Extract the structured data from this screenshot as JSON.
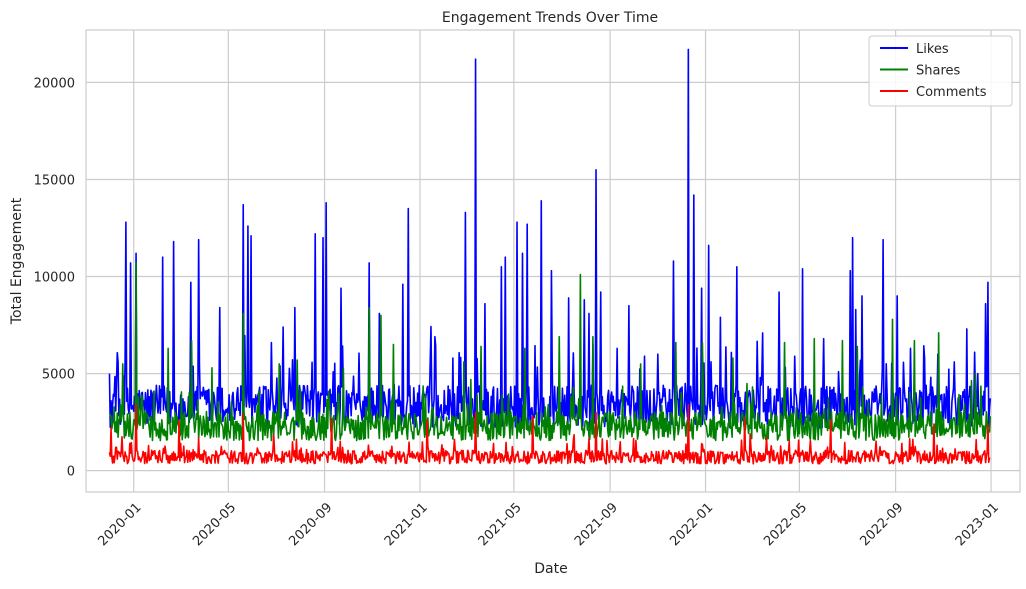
{
  "chart_data": {
    "type": "line",
    "title": "Engagement Trends Over Time",
    "xlabel": "Date",
    "ylabel": "Total Engagement",
    "xlim": [
      "2019-11-01",
      "2023-02-07"
    ],
    "ylim": [
      -1100,
      22700
    ],
    "grid": true,
    "legend_position": "top-right",
    "x_ticks": [
      "2020-01",
      "2020-05",
      "2020-09",
      "2021-01",
      "2021-05",
      "2021-09",
      "2022-01",
      "2022-05",
      "2022-09",
      "2023-01"
    ],
    "y_ticks": [
      0,
      5000,
      10000,
      15000,
      20000
    ],
    "x_start": "2019-12-01",
    "x_end": "2022-12-31",
    "series": [
      {
        "name": "Likes",
        "color": "#0000ff",
        "baseline": 3300,
        "noise": 1100,
        "min": 1500,
        "spikes": [
          {
            "date": "2019-12-01",
            "value": 5000
          },
          {
            "date": "2019-12-10",
            "value": 4600
          },
          {
            "date": "2019-12-22",
            "value": 12800
          },
          {
            "date": "2019-12-28",
            "value": 10700
          },
          {
            "date": "2020-01-04",
            "value": 11200
          },
          {
            "date": "2020-02-07",
            "value": 11000
          },
          {
            "date": "2020-02-21",
            "value": 11800
          },
          {
            "date": "2020-03-14",
            "value": 9700
          },
          {
            "date": "2020-03-24",
            "value": 11900
          },
          {
            "date": "2020-04-20",
            "value": 8400
          },
          {
            "date": "2020-05-20",
            "value": 13700
          },
          {
            "date": "2020-05-26",
            "value": 12600
          },
          {
            "date": "2020-05-30",
            "value": 12100
          },
          {
            "date": "2020-06-25",
            "value": 6600
          },
          {
            "date": "2020-07-10",
            "value": 7400
          },
          {
            "date": "2020-07-25",
            "value": 8400
          },
          {
            "date": "2020-08-20",
            "value": 12200
          },
          {
            "date": "2020-08-30",
            "value": 12000
          },
          {
            "date": "2020-09-03",
            "value": 13800
          },
          {
            "date": "2020-09-22",
            "value": 9400
          },
          {
            "date": "2020-10-28",
            "value": 10700
          },
          {
            "date": "2020-11-10",
            "value": 8100
          },
          {
            "date": "2020-12-10",
            "value": 9600
          },
          {
            "date": "2020-12-17",
            "value": 13500
          },
          {
            "date": "2021-01-20",
            "value": 6900
          },
          {
            "date": "2021-02-12",
            "value": 5800
          },
          {
            "date": "2021-02-28",
            "value": 13300
          },
          {
            "date": "2021-03-13",
            "value": 21200
          },
          {
            "date": "2021-03-25",
            "value": 8600
          },
          {
            "date": "2021-04-15",
            "value": 10500
          },
          {
            "date": "2021-04-20",
            "value": 11000
          },
          {
            "date": "2021-05-05",
            "value": 12800
          },
          {
            "date": "2021-05-12",
            "value": 11200
          },
          {
            "date": "2021-05-18",
            "value": 12700
          },
          {
            "date": "2021-06-05",
            "value": 13900
          },
          {
            "date": "2021-06-18",
            "value": 10300
          },
          {
            "date": "2021-07-10",
            "value": 8900
          },
          {
            "date": "2021-07-30",
            "value": 8800
          },
          {
            "date": "2021-08-05",
            "value": 8100
          },
          {
            "date": "2021-08-14",
            "value": 15500
          },
          {
            "date": "2021-08-20",
            "value": 9200
          },
          {
            "date": "2021-09-10",
            "value": 6300
          },
          {
            "date": "2021-09-25",
            "value": 8500
          },
          {
            "date": "2021-10-15",
            "value": 5900
          },
          {
            "date": "2021-11-01",
            "value": 6000
          },
          {
            "date": "2021-11-21",
            "value": 10800
          },
          {
            "date": "2021-12-10",
            "value": 21700
          },
          {
            "date": "2021-12-17",
            "value": 14200
          },
          {
            "date": "2021-12-27",
            "value": 9400
          },
          {
            "date": "2022-01-05",
            "value": 11600
          },
          {
            "date": "2022-01-20",
            "value": 7900
          },
          {
            "date": "2022-02-10",
            "value": 10500
          },
          {
            "date": "2022-03-14",
            "value": 5000
          },
          {
            "date": "2022-04-05",
            "value": 9200
          },
          {
            "date": "2022-04-25",
            "value": 5900
          },
          {
            "date": "2022-05-05",
            "value": 10400
          },
          {
            "date": "2022-06-01",
            "value": 6800
          },
          {
            "date": "2022-06-20",
            "value": 5100
          },
          {
            "date": "2022-07-05",
            "value": 10300
          },
          {
            "date": "2022-07-08",
            "value": 12000
          },
          {
            "date": "2022-07-12",
            "value": 8300
          },
          {
            "date": "2022-07-20",
            "value": 9000
          },
          {
            "date": "2022-08-16",
            "value": 11900
          },
          {
            "date": "2022-09-03",
            "value": 9000
          },
          {
            "date": "2022-09-20",
            "value": 6300
          },
          {
            "date": "2022-10-08",
            "value": 5800
          },
          {
            "date": "2022-10-25",
            "value": 6000
          },
          {
            "date": "2022-11-15",
            "value": 5600
          },
          {
            "date": "2022-12-01",
            "value": 7300
          },
          {
            "date": "2022-12-15",
            "value": 5000
          },
          {
            "date": "2022-12-25",
            "value": 8600
          },
          {
            "date": "2022-12-28",
            "value": 9700
          }
        ]
      },
      {
        "name": "Shares",
        "color": "#008000",
        "baseline": 2300,
        "noise": 750,
        "min": 900,
        "spikes": [
          {
            "date": "2019-12-18",
            "value": 5500
          },
          {
            "date": "2020-01-04",
            "value": 10700
          },
          {
            "date": "2020-02-14",
            "value": 6300
          },
          {
            "date": "2020-03-15",
            "value": 6700
          },
          {
            "date": "2020-04-10",
            "value": 5300
          },
          {
            "date": "2020-05-20",
            "value": 8100
          },
          {
            "date": "2020-07-05",
            "value": 5500
          },
          {
            "date": "2020-07-28",
            "value": 5700
          },
          {
            "date": "2020-09-25",
            "value": 5300
          },
          {
            "date": "2020-10-28",
            "value": 8400
          },
          {
            "date": "2020-11-12",
            "value": 8000
          },
          {
            "date": "2020-11-28",
            "value": 6500
          },
          {
            "date": "2021-02-26",
            "value": 5600
          },
          {
            "date": "2021-03-20",
            "value": 6400
          },
          {
            "date": "2021-05-15",
            "value": 6300
          },
          {
            "date": "2021-06-28",
            "value": 6900
          },
          {
            "date": "2021-07-25",
            "value": 10100
          },
          {
            "date": "2021-08-10",
            "value": 6900
          },
          {
            "date": "2021-10-10",
            "value": 5500
          },
          {
            "date": "2021-11-24",
            "value": 6600
          },
          {
            "date": "2021-12-28",
            "value": 6600
          },
          {
            "date": "2022-02-05",
            "value": 5800
          },
          {
            "date": "2022-04-12",
            "value": 6600
          },
          {
            "date": "2022-05-20",
            "value": 6800
          },
          {
            "date": "2022-06-25",
            "value": 6700
          },
          {
            "date": "2022-07-14",
            "value": 6400
          },
          {
            "date": "2022-08-28",
            "value": 7800
          },
          {
            "date": "2022-09-25",
            "value": 6700
          },
          {
            "date": "2022-10-26",
            "value": 7100
          },
          {
            "date": "2022-12-12",
            "value": 5000
          }
        ]
      },
      {
        "name": "Comments",
        "color": "#ff0000",
        "baseline": 700,
        "noise": 350,
        "min": 150,
        "spikes": [
          {
            "date": "2019-12-03",
            "value": 2200
          },
          {
            "date": "2020-01-04",
            "value": 3400
          },
          {
            "date": "2020-02-28",
            "value": 2600
          },
          {
            "date": "2020-05-20",
            "value": 2900
          },
          {
            "date": "2020-09-10",
            "value": 2700
          },
          {
            "date": "2021-01-10",
            "value": 2600
          },
          {
            "date": "2021-03-13",
            "value": 3000
          },
          {
            "date": "2021-05-25",
            "value": 2800
          },
          {
            "date": "2021-08-14",
            "value": 3000
          },
          {
            "date": "2021-12-10",
            "value": 3400
          },
          {
            "date": "2022-02-20",
            "value": 2700
          },
          {
            "date": "2022-06-10",
            "value": 2600
          },
          {
            "date": "2022-10-20",
            "value": 2400
          },
          {
            "date": "2022-12-28",
            "value": 2400
          }
        ]
      }
    ]
  }
}
